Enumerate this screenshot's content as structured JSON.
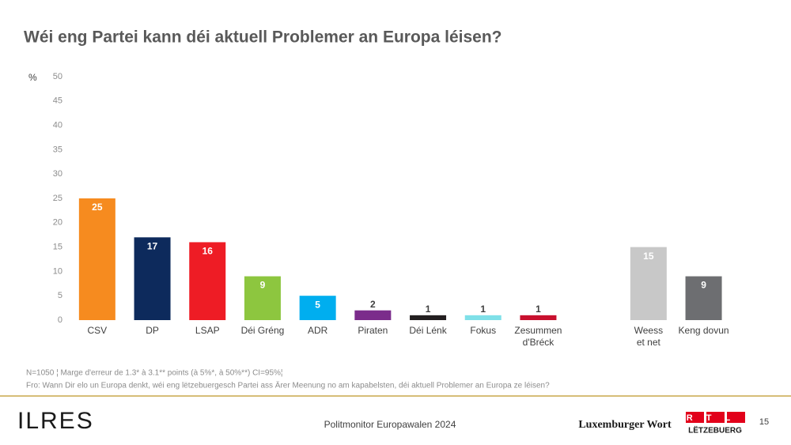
{
  "chart_data": {
    "type": "bar",
    "title": "Wéi eng Partei kann déi aktuell Problemer an Europa léisen?",
    "y_label": "%",
    "categories": [
      "CSV",
      "DP",
      "LSAP",
      "Déi Gréng",
      "ADR",
      "Piraten",
      "Déi Lénk",
      "Fokus",
      "Zesummen\nd'Bréck",
      null,
      "Weess\net net",
      "Keng dovun"
    ],
    "values": [
      25,
      17,
      16,
      9,
      5,
      2,
      1,
      1,
      1,
      null,
      15,
      9
    ],
    "colors": [
      "#f68b1f",
      "#0d2a5c",
      "#ee1c25",
      "#8dc63f",
      "#00aeef",
      "#7b2c8b",
      "#231f20",
      "#7fe0e8",
      "#c8102e",
      null,
      "#c8c8c8",
      "#6d6e71"
    ],
    "ylim": [
      0,
      50
    ],
    "yticks": [
      0,
      5,
      10,
      15,
      20,
      25,
      30,
      35,
      40,
      45,
      50
    ],
    "grid": false,
    "notes": [
      "N=1050 ¦ Marge d'erreur de 1.3* à 3.1** points (à 5%*, à 50%**) CI=95%¦",
      "Fro: Wann Dir elo un Europa denkt, wéi eng lëtzebuergesch Partei ass Ärer Meenung no am kapabelsten, déi aktuell Problemer an Europa ze léisen?"
    ]
  },
  "footer": {
    "logo": "ILRES",
    "center": "Politmonitor Europawalen 2024",
    "partner": "Luxemburger Wort",
    "rtl": "RTL",
    "rtl_sub": "LËTZEBUERG",
    "page": "15"
  }
}
